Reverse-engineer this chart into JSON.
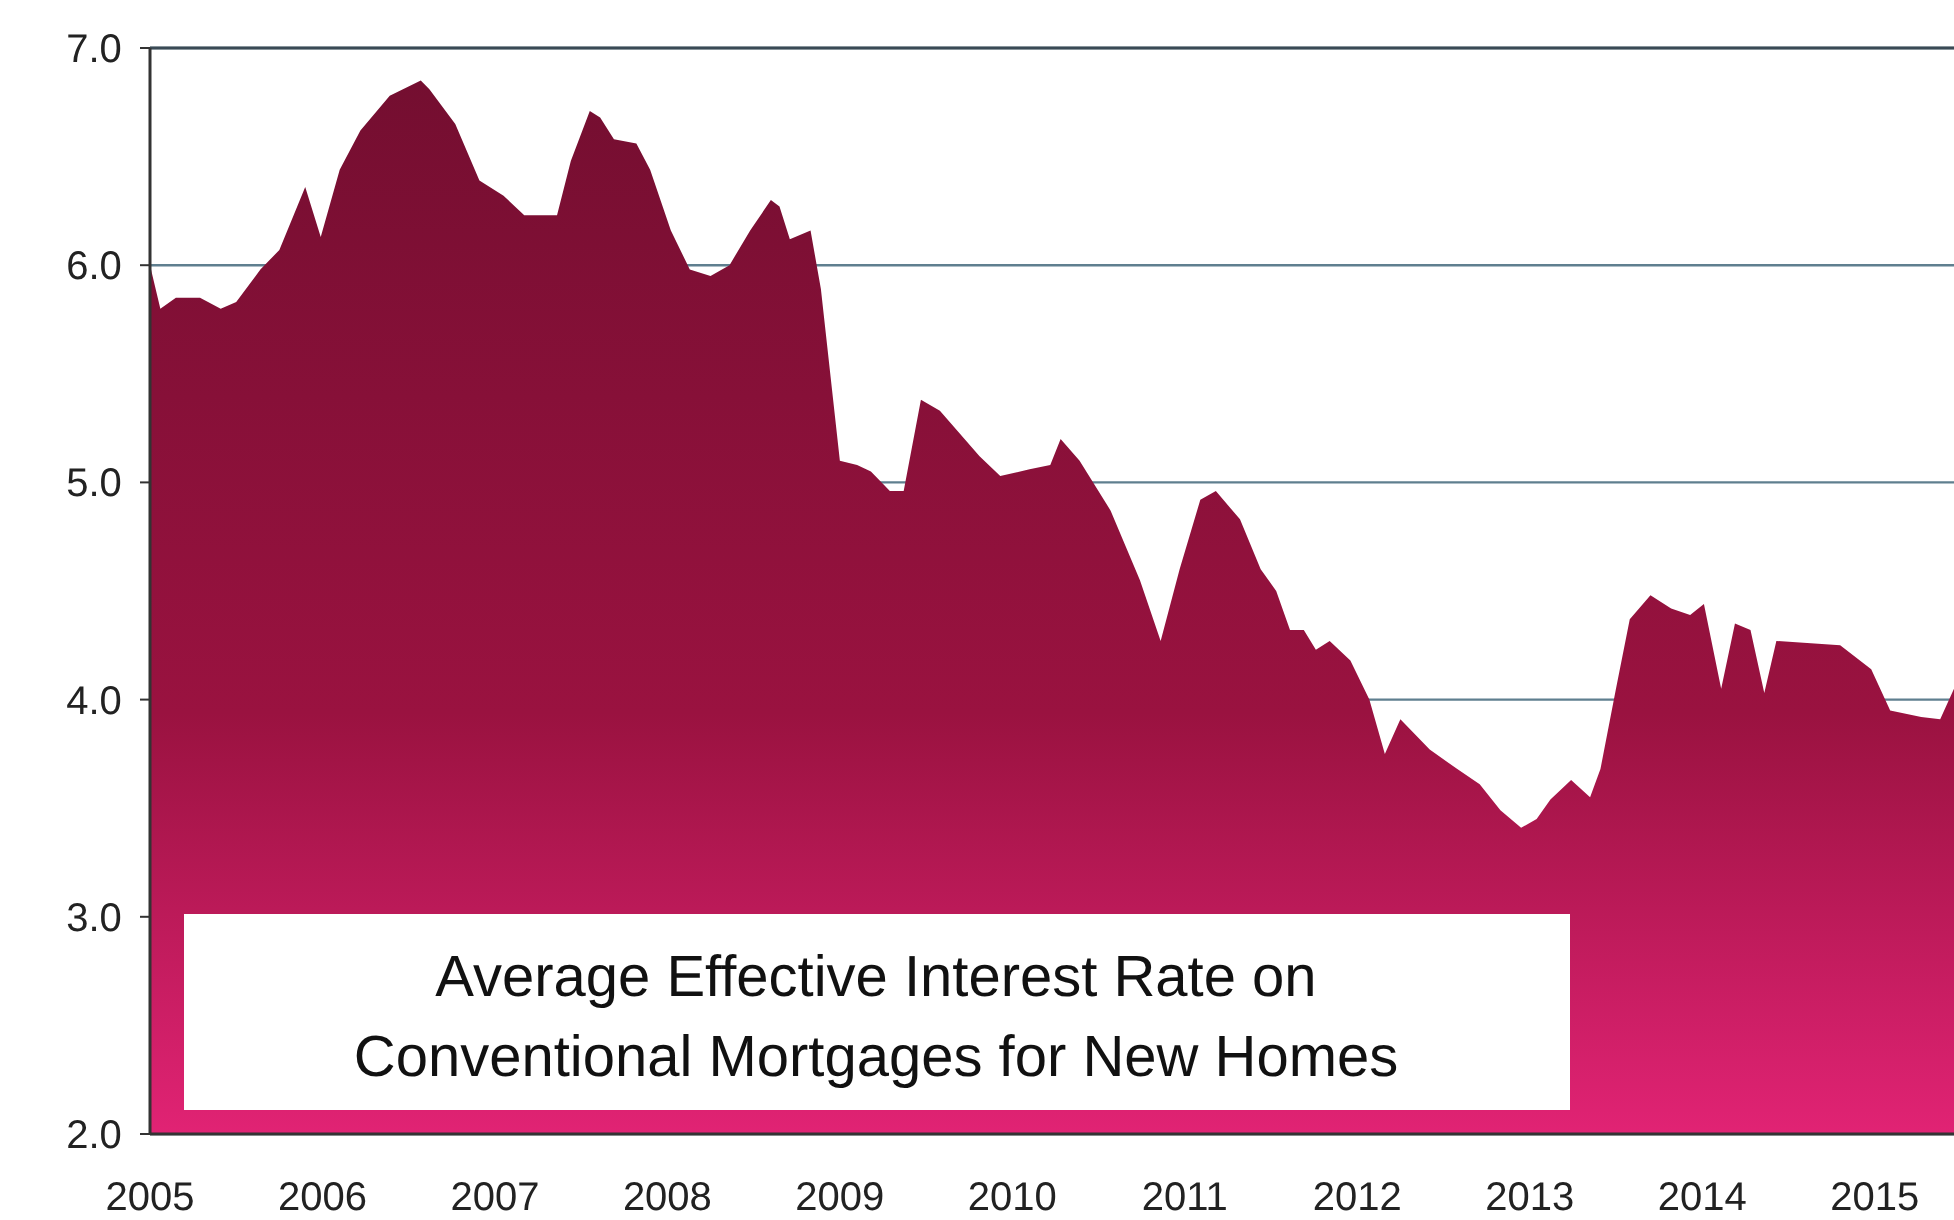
{
  "chart_data": {
    "type": "area",
    "title": "Average Effective Interest Rate on Conventional Mortgages for New Homes",
    "xlim": [
      2005,
      2015.46
    ],
    "xticks": [
      2005,
      2006,
      2007,
      2008,
      2009,
      2010,
      2011,
      2012,
      2013,
      2014,
      2015
    ],
    "ylim": [
      2,
      7
    ],
    "yticks": [
      {
        "value": 2,
        "label": "2.0"
      },
      {
        "value": 3,
        "label": "3.0"
      },
      {
        "value": 4,
        "label": "4.0"
      },
      {
        "value": 5,
        "label": "5.0"
      },
      {
        "value": 6,
        "label": "6.0"
      },
      {
        "value": 7,
        "label": "7.0"
      }
    ],
    "grid": "y",
    "series": [
      {
        "color": "#9a1240",
        "x": [
          2005.0,
          2005.06,
          2005.15,
          2005.29,
          2005.41,
          2005.5,
          2005.64,
          2005.75,
          2005.9,
          2005.99,
          2006.1,
          2006.22,
          2006.39,
          2006.57,
          2006.62,
          2006.77,
          2006.91,
          2007.05,
          2007.17,
          2007.36,
          2007.44,
          2007.55,
          2007.61,
          2007.69,
          2007.82,
          2007.9,
          2008.02,
          2008.13,
          2008.25,
          2008.36,
          2008.48,
          2008.6,
          2008.65,
          2008.71,
          2008.83,
          2008.89,
          2009.0,
          2009.1,
          2009.18,
          2009.29,
          2009.37,
          2009.47,
          2009.58,
          2009.81,
          2009.93,
          2010.1,
          2010.22,
          2010.28,
          2010.39,
          2010.57,
          2010.74,
          2010.86,
          2010.97,
          2011.09,
          2011.18,
          2011.32,
          2011.44,
          2011.53,
          2011.61,
          2011.69,
          2011.76,
          2011.84,
          2011.96,
          2012.07,
          2012.16,
          2012.25,
          2012.42,
          2012.58,
          2012.71,
          2012.83,
          2012.95,
          2013.04,
          2013.12,
          2013.24,
          2013.35,
          2013.41,
          2013.5,
          2013.58,
          2013.7,
          2013.82,
          2013.93,
          2014.01,
          2014.11,
          2014.19,
          2014.28,
          2014.36,
          2014.43,
          2014.63,
          2014.8,
          2014.98,
          2015.09,
          2015.27,
          2015.38,
          2015.46
        ],
        "values": [
          6.0,
          5.8,
          5.85,
          5.85,
          5.8,
          5.83,
          5.98,
          6.07,
          6.36,
          6.13,
          6.44,
          6.62,
          6.78,
          6.85,
          6.81,
          6.65,
          6.39,
          6.32,
          6.23,
          6.23,
          6.48,
          6.71,
          6.68,
          6.58,
          6.56,
          6.44,
          6.16,
          5.98,
          5.95,
          6.0,
          6.16,
          6.3,
          6.27,
          6.12,
          6.16,
          5.89,
          5.1,
          5.08,
          5.05,
          4.96,
          4.96,
          5.38,
          5.33,
          5.12,
          5.03,
          5.06,
          5.08,
          5.2,
          5.1,
          4.87,
          4.55,
          4.27,
          4.6,
          4.92,
          4.96,
          4.83,
          4.6,
          4.5,
          4.32,
          4.32,
          4.23,
          4.27,
          4.18,
          4.0,
          3.75,
          3.91,
          3.77,
          3.68,
          3.61,
          3.49,
          3.41,
          3.45,
          3.54,
          3.63,
          3.55,
          3.68,
          4.05,
          4.37,
          4.48,
          4.42,
          4.39,
          4.44,
          4.05,
          4.35,
          4.32,
          4.03,
          4.27,
          4.26,
          4.25,
          4.14,
          3.95,
          3.92,
          3.91,
          4.05
        ]
      }
    ]
  }
}
